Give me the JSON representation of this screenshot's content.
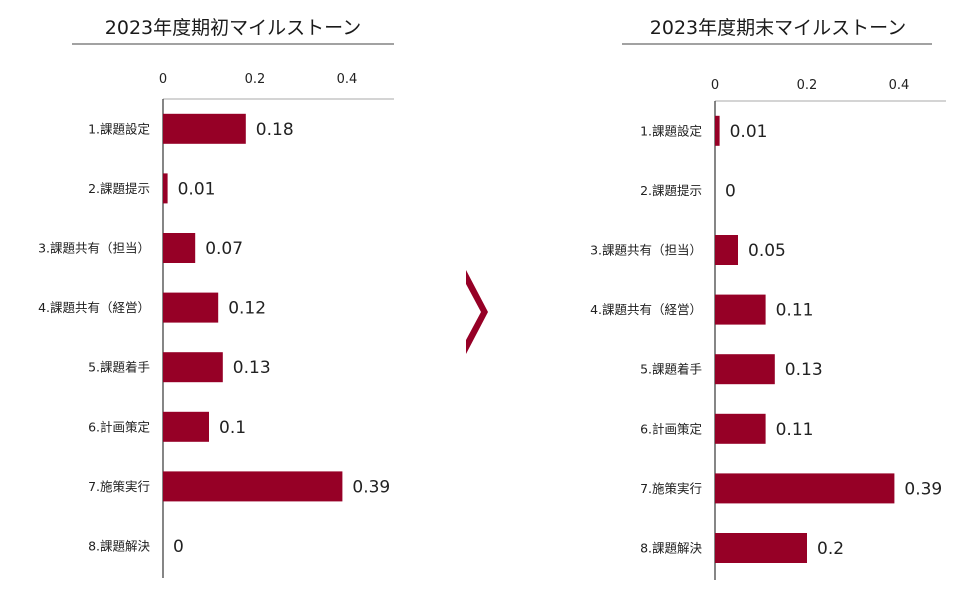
{
  "colors": {
    "bar": "#960026",
    "axis": "#444444",
    "arrow": "#960026"
  },
  "separator_icon": "right-triangle-arrow-icon",
  "chart_data": [
    {
      "type": "bar",
      "orientation": "horizontal",
      "title": "2023年度期初マイルストーン",
      "xlim": [
        0,
        0.5
      ],
      "ticks": [
        0,
        0.2,
        0.4
      ],
      "tick_labels": [
        "0",
        "0.2",
        "0.4"
      ],
      "categories": [
        "1.課題設定",
        "2.課題提示",
        "3.課題共有（担当）",
        "4.課題共有（経営）",
        "5.課題着手",
        "6.計画策定",
        "7.施策実行",
        "8.課題解決"
      ],
      "values": [
        0.18,
        0.01,
        0.07,
        0.12,
        0.13,
        0.1,
        0.39,
        0
      ],
      "value_labels": [
        "0.18",
        "0.01",
        "0.07",
        "0.12",
        "0.13",
        "0.1",
        "0.39",
        "0"
      ]
    },
    {
      "type": "bar",
      "orientation": "horizontal",
      "title": "2023年度期末マイルストーン",
      "xlim": [
        0,
        0.5
      ],
      "ticks": [
        0,
        0.2,
        0.4
      ],
      "tick_labels": [
        "0",
        "0.2",
        "0.4"
      ],
      "categories": [
        "1.課題設定",
        "2.課題提示",
        "3.課題共有（担当）",
        "4.課題共有（経営）",
        "5.課題着手",
        "6.計画策定",
        "7.施策実行",
        "8.課題解決"
      ],
      "values": [
        0.01,
        0,
        0.05,
        0.11,
        0.13,
        0.11,
        0.39,
        0.2
      ],
      "value_labels": [
        "0.01",
        "0",
        "0.05",
        "0.11",
        "0.13",
        "0.11",
        "0.39",
        "0.2"
      ]
    }
  ]
}
